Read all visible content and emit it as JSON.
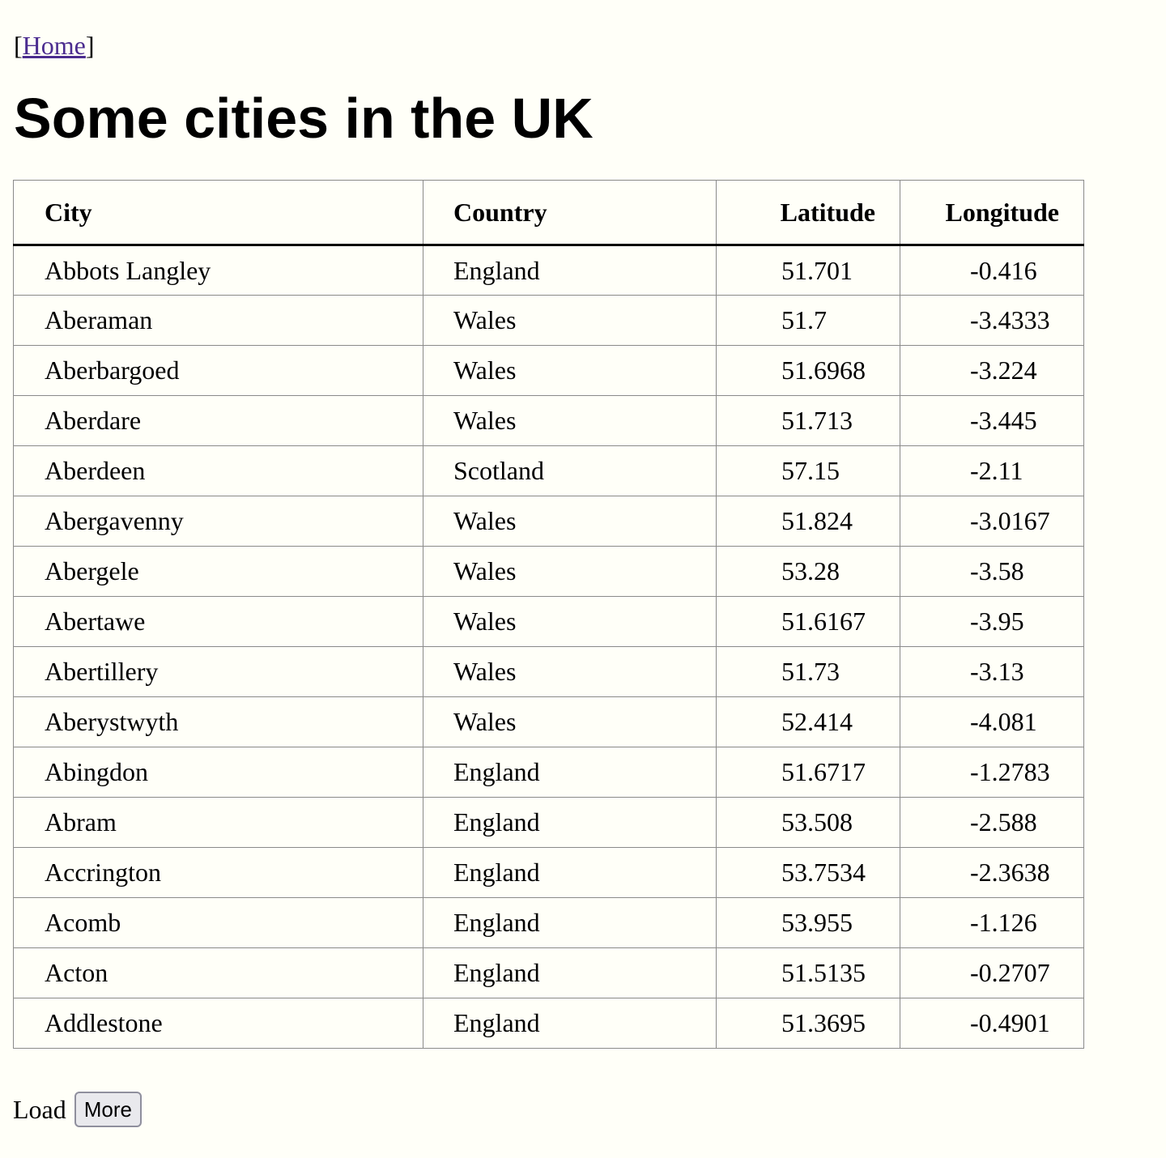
{
  "nav": {
    "open_bracket": "[",
    "home_label": "Home",
    "close_bracket": "]"
  },
  "page_title": "Some cities in the UK",
  "table": {
    "headers": {
      "city": "City",
      "country": "Country",
      "latitude": "Latitude",
      "longitude": "Longitude"
    },
    "rows": [
      {
        "city": "Abbots Langley",
        "country": "England",
        "latitude": "51.701",
        "longitude": "-0.416"
      },
      {
        "city": "Aberaman",
        "country": "Wales",
        "latitude": "51.7",
        "longitude": "-3.4333"
      },
      {
        "city": "Aberbargoed",
        "country": "Wales",
        "latitude": "51.6968",
        "longitude": "-3.224"
      },
      {
        "city": "Aberdare",
        "country": "Wales",
        "latitude": "51.713",
        "longitude": "-3.445"
      },
      {
        "city": "Aberdeen",
        "country": "Scotland",
        "latitude": "57.15",
        "longitude": "-2.11"
      },
      {
        "city": "Abergavenny",
        "country": "Wales",
        "latitude": "51.824",
        "longitude": "-3.0167"
      },
      {
        "city": "Abergele",
        "country": "Wales",
        "latitude": "53.28",
        "longitude": "-3.58"
      },
      {
        "city": "Abertawe",
        "country": "Wales",
        "latitude": "51.6167",
        "longitude": "-3.95"
      },
      {
        "city": "Abertillery",
        "country": "Wales",
        "latitude": "51.73",
        "longitude": "-3.13"
      },
      {
        "city": "Aberystwyth",
        "country": "Wales",
        "latitude": "52.414",
        "longitude": "-4.081"
      },
      {
        "city": "Abingdon",
        "country": "England",
        "latitude": "51.6717",
        "longitude": "-1.2783"
      },
      {
        "city": "Abram",
        "country": "England",
        "latitude": "53.508",
        "longitude": "-2.588"
      },
      {
        "city": "Accrington",
        "country": "England",
        "latitude": "53.7534",
        "longitude": "-2.3638"
      },
      {
        "city": "Acomb",
        "country": "England",
        "latitude": "53.955",
        "longitude": "-1.126"
      },
      {
        "city": "Acton",
        "country": "England",
        "latitude": "51.5135",
        "longitude": "-0.2707"
      },
      {
        "city": "Addlestone",
        "country": "England",
        "latitude": "51.3695",
        "longitude": "-0.4901"
      }
    ]
  },
  "load_more": {
    "label": "Load",
    "button_label": "More"
  }
}
